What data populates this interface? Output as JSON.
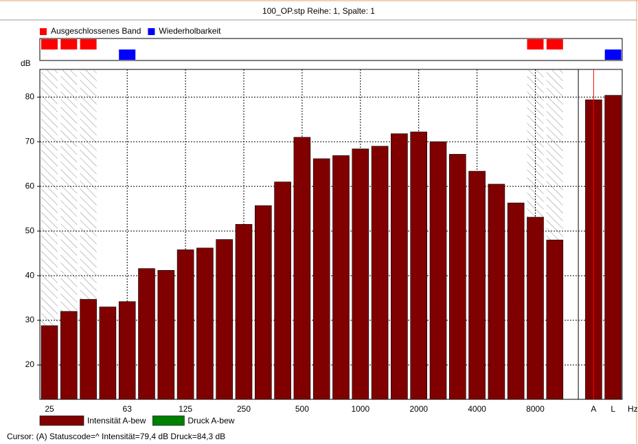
{
  "chart_data": {
    "type": "bar",
    "title": "100_OP.stp Reihe: 1, Spalte: 1",
    "ylabel": "dB",
    "xlabel": "Hz",
    "categories": [
      "25",
      null,
      null,
      null,
      "63",
      null,
      null,
      "125",
      null,
      null,
      "250",
      null,
      null,
      "500",
      null,
      null,
      "1000",
      null,
      null,
      "2000",
      null,
      null,
      "4000",
      null,
      null,
      "8000",
      null,
      "A",
      "L"
    ],
    "series": [
      {
        "name": "Intensität A-bew",
        "color": "#800000",
        "values": [
          28.8,
          32.0,
          34.7,
          33.0,
          34.2,
          41.6,
          41.2,
          45.8,
          46.2,
          48.1,
          51.5,
          55.7,
          61.0,
          71.0,
          66.2,
          66.9,
          68.4,
          69.0,
          71.8,
          72.2,
          70.0,
          67.2,
          63.4,
          60.5,
          56.3,
          53.1,
          48.0,
          79.4,
          80.4
        ]
      },
      {
        "name": "Druck A-bew",
        "color": "#008000"
      }
    ],
    "flags": [
      {
        "name": "Ausgeschlossenes Band",
        "color": "#ff0000",
        "indices": [
          0,
          1,
          2,
          25,
          26
        ]
      },
      {
        "name": "Wiederholbarkeit",
        "color": "#0000ff",
        "indices": [
          4,
          28
        ]
      }
    ],
    "cursor": "A",
    "status": "Cursor: (A) Statuscode=^  Intensität=79,4 dB  Druck=84,3 dB",
    "ylim": [
      12.3,
      86.2
    ],
    "yticks": [
      20,
      30,
      40,
      50,
      60,
      70,
      80
    ],
    "grid": true
  }
}
